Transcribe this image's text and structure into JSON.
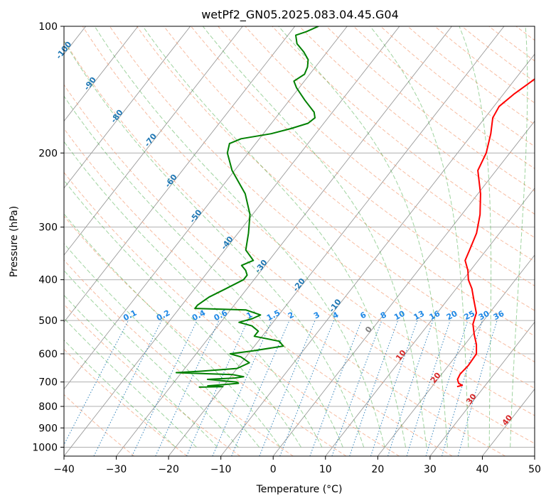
{
  "chart_data": {
    "type": "line",
    "diagram": "skew-t log-p",
    "title": "wetPf2_GN05.2025.083.04.45.G04",
    "xlabel": "Temperature (°C)",
    "ylabel": "Pressure (hPa)",
    "xlim": [
      -40,
      50
    ],
    "ylim": [
      1050,
      100
    ],
    "y_scale": "log",
    "grid": true,
    "x_ticks": [
      -40,
      -30,
      -20,
      -10,
      0,
      10,
      20,
      30,
      40,
      50
    ],
    "y_ticks": [
      100,
      200,
      300,
      400,
      500,
      600,
      700,
      800,
      900,
      1000
    ],
    "x_tick_labels": [
      "−40",
      "−30",
      "−20",
      "−10",
      "0",
      "10",
      "20",
      "30",
      "40",
      "50"
    ],
    "y_tick_labels": [
      "100",
      "200",
      "300",
      "400",
      "500",
      "600",
      "700",
      "800",
      "900",
      "1000"
    ],
    "isotherm_labels": [
      {
        "temperature": -100,
        "text": "-100"
      },
      {
        "temperature": -90,
        "text": "-90"
      },
      {
        "temperature": -80,
        "text": "-80"
      },
      {
        "temperature": -70,
        "text": "-70"
      },
      {
        "temperature": -60,
        "text": "-60"
      },
      {
        "temperature": -50,
        "text": "-50"
      },
      {
        "temperature": -40,
        "text": "-40"
      },
      {
        "temperature": -30,
        "text": "-30"
      },
      {
        "temperature": -20,
        "text": "-20"
      },
      {
        "temperature": -10,
        "text": "-10"
      }
    ],
    "isotherm_label_pressure": [
      115,
      138,
      165,
      188,
      235,
      285,
      330,
      375,
      415,
      465
    ],
    "positive_isotherm_labels": [
      {
        "temperature": 0,
        "pressure": 530,
        "text": "0",
        "color": "#808080"
      },
      {
        "temperature": 10,
        "pressure": 610,
        "text": "10",
        "color": "#d62728"
      },
      {
        "temperature": 20,
        "pressure": 690,
        "text": "20",
        "color": "#d62728"
      },
      {
        "temperature": 30,
        "pressure": 775,
        "text": "30",
        "color": "#d62728"
      },
      {
        "temperature": 40,
        "pressure": 870,
        "text": "40",
        "color": "#d62728"
      }
    ],
    "mixing_ratio_labels": [
      "0.1",
      "0.2",
      "0.4",
      "0.6",
      "1",
      "1.5",
      "2",
      "3",
      "4",
      "6",
      "8",
      "10",
      "13",
      "16",
      "20",
      "25",
      "30",
      "36"
    ],
    "mixing_ratio_values": [
      0.1,
      0.2,
      0.4,
      0.6,
      1,
      1.5,
      2,
      3,
      4,
      6,
      8,
      10,
      13,
      16,
      20,
      25,
      30,
      36
    ],
    "series": [
      {
        "role": "temperature",
        "color": "#ff0000",
        "points": [
          [
            718,
            24.8
          ],
          [
            713,
            25.6
          ],
          [
            705,
            24.6
          ],
          [
            690,
            23.8
          ],
          [
            670,
            23.5
          ],
          [
            640,
            23.8
          ],
          [
            600,
            23.6
          ],
          [
            570,
            22.2
          ],
          [
            540,
            20.3
          ],
          [
            510,
            18.5
          ],
          [
            480,
            17.5
          ],
          [
            450,
            15.3
          ],
          [
            420,
            13.0
          ],
          [
            400,
            11.0
          ],
          [
            380,
            9.5
          ],
          [
            360,
            7.5
          ],
          [
            340,
            6.8
          ],
          [
            310,
            5.6
          ],
          [
            280,
            3.5
          ],
          [
            250,
            0.5
          ],
          [
            220,
            -3.5
          ],
          [
            200,
            -4.5
          ],
          [
            180,
            -6.5
          ],
          [
            165,
            -8.5
          ],
          [
            155,
            -9.0
          ],
          [
            145,
            -8.0
          ],
          [
            135,
            -6.5
          ],
          [
            125,
            -5.0
          ],
          [
            115,
            -3.0
          ],
          [
            108,
            -1.5
          ],
          [
            100,
            -0.3
          ]
        ]
      },
      {
        "role": "dewpoint",
        "color": "#008000",
        "points": [
          [
            720,
            -24.5
          ],
          [
            718,
            -20.0
          ],
          [
            715,
            -23.0
          ],
          [
            710,
            -20.0
          ],
          [
            705,
            -17.5
          ],
          [
            700,
            -18.0
          ],
          [
            690,
            -24.0
          ],
          [
            685,
            -19.0
          ],
          [
            680,
            -17.5
          ],
          [
            672,
            -20.0
          ],
          [
            665,
            -31.0
          ],
          [
            660,
            -26.5
          ],
          [
            650,
            -20.0
          ],
          [
            630,
            -18.5
          ],
          [
            610,
            -21.0
          ],
          [
            600,
            -23.5
          ],
          [
            590,
            -19.5
          ],
          [
            575,
            -14.5
          ],
          [
            560,
            -16.0
          ],
          [
            545,
            -21.5
          ],
          [
            530,
            -21.5
          ],
          [
            515,
            -23.5
          ],
          [
            505,
            -26.5
          ],
          [
            495,
            -24.5
          ],
          [
            485,
            -23.5
          ],
          [
            472,
            -27.0
          ],
          [
            468,
            -37.0
          ],
          [
            460,
            -37.0
          ],
          [
            440,
            -36.0
          ],
          [
            420,
            -34.0
          ],
          [
            400,
            -32.0
          ],
          [
            390,
            -32.0
          ],
          [
            380,
            -33.0
          ],
          [
            370,
            -34.5
          ],
          [
            360,
            -33.0
          ],
          [
            340,
            -36.0
          ],
          [
            310,
            -38.0
          ],
          [
            280,
            -40.5
          ],
          [
            250,
            -44.5
          ],
          [
            220,
            -50.5
          ],
          [
            200,
            -54.0
          ],
          [
            190,
            -55.0
          ],
          [
            185,
            -53.5
          ],
          [
            180,
            -48.5
          ],
          [
            175,
            -45.5
          ],
          [
            170,
            -43.0
          ],
          [
            165,
            -42.5
          ],
          [
            160,
            -43.5
          ],
          [
            150,
            -47.0
          ],
          [
            140,
            -50.5
          ],
          [
            135,
            -52.0
          ],
          [
            130,
            -51.0
          ],
          [
            125,
            -51.5
          ],
          [
            120,
            -52.5
          ],
          [
            115,
            -54.5
          ],
          [
            110,
            -57.0
          ],
          [
            105,
            -58.5
          ],
          [
            103,
            -57.0
          ],
          [
            100,
            -55.5
          ]
        ]
      }
    ]
  },
  "colors": {
    "temperature": "#ff0000",
    "dewpoint": "#008000",
    "isotherm": "#808080",
    "dry_adiabat": "#f4a582",
    "moist_adiabat": "#2ca02c",
    "mixing_ratio": "#1f77b4",
    "mixing_label": "#1e88e5",
    "isotherm_label": "#1f77b4"
  }
}
